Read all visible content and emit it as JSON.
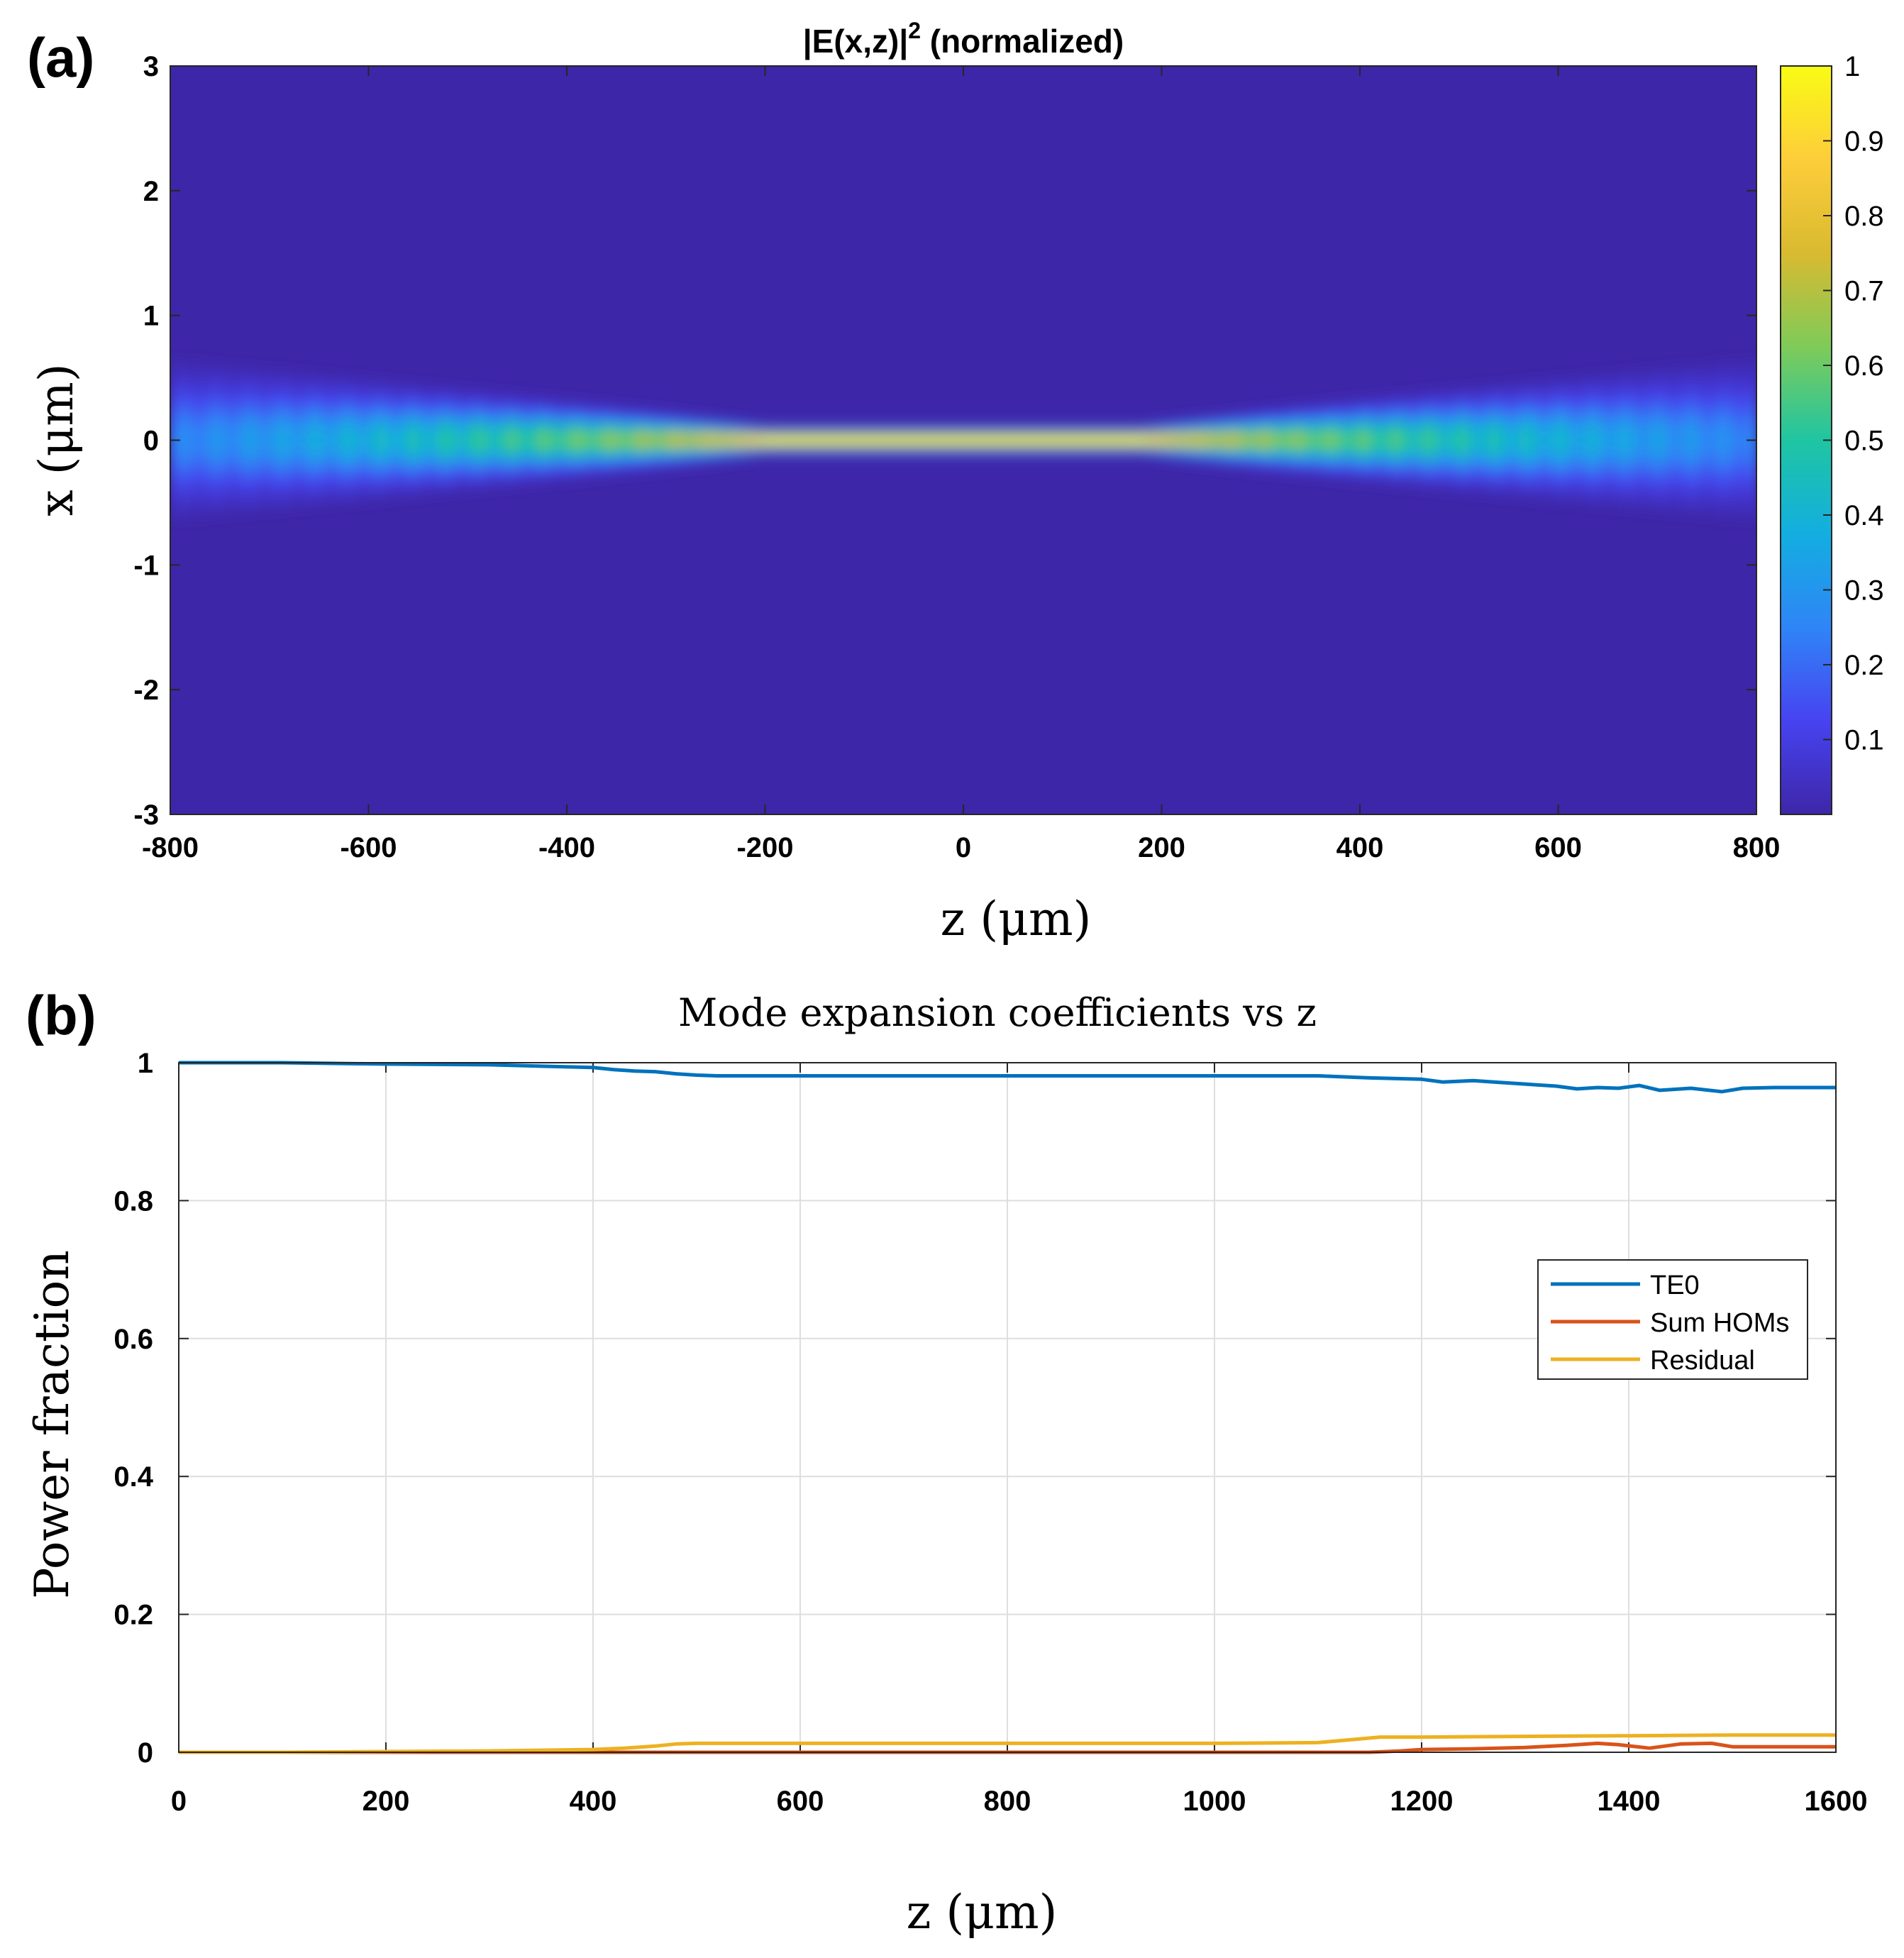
{
  "chart_data": [
    {
      "type": "heatmap",
      "panel_label": "(a)",
      "title": "|E(x,z)|",
      "title_superscript": "2",
      "title_suffix": " (normalized)",
      "xlabel": "z (μm)",
      "ylabel": "x (μm)",
      "xlim": [
        -800,
        800
      ],
      "ylim": [
        -3,
        3
      ],
      "xticks": [
        -800,
        -600,
        -400,
        -200,
        0,
        200,
        400,
        600,
        800
      ],
      "yticks": [
        3,
        2,
        1,
        0,
        -1,
        -2,
        -3
      ],
      "colorbar": {
        "range": [
          0,
          1
        ],
        "ticks": [
          1,
          0.9,
          0.8,
          0.7,
          0.6,
          0.5,
          0.4,
          0.3,
          0.2,
          0.1
        ],
        "colormap": [
          "#3e26a8",
          "#4743f0",
          "#2f85f7",
          "#13aee0",
          "#1fc5a2",
          "#7fcb59",
          "#d9ba30",
          "#fdcd3a",
          "#f9fb14"
        ]
      },
      "field": {
        "plateau_z": [
          -200,
          180
        ],
        "beam_halfwidth_center_um": 0.1,
        "beam_halfwidth_edge_um": 0.55,
        "peak_intensity_edge": 0.25
      }
    },
    {
      "type": "line",
      "panel_label": "(b)",
      "title": "Mode expansion coefficients vs z",
      "xlabel": "z (μm)",
      "ylabel": "Power fraction",
      "xlim": [
        0,
        1600
      ],
      "ylim": [
        0,
        1
      ],
      "xticks": [
        0,
        200,
        400,
        600,
        800,
        1000,
        1200,
        1400,
        1600
      ],
      "yticks": [
        0,
        0.2,
        0.4,
        0.6,
        0.8,
        1
      ],
      "grid": true,
      "legend_position": "center-right",
      "series": [
        {
          "name": "TE0",
          "color": "#0072bd",
          "x": [
            0,
            100,
            200,
            300,
            350,
            400,
            420,
            440,
            460,
            480,
            500,
            520,
            600,
            800,
            1000,
            1100,
            1150,
            1200,
            1220,
            1250,
            1270,
            1300,
            1330,
            1350,
            1370,
            1390,
            1410,
            1430,
            1460,
            1490,
            1510,
            1540,
            1600
          ],
          "y": [
            1.0,
            1.0,
            0.998,
            0.997,
            0.995,
            0.993,
            0.99,
            0.988,
            0.987,
            0.984,
            0.982,
            0.981,
            0.981,
            0.981,
            0.981,
            0.981,
            0.978,
            0.976,
            0.972,
            0.974,
            0.972,
            0.969,
            0.966,
            0.962,
            0.964,
            0.963,
            0.967,
            0.96,
            0.963,
            0.958,
            0.963,
            0.964,
            0.964
          ]
        },
        {
          "name": "Sum HOMs",
          "color": "#d95319",
          "x": [
            0,
            200,
            400,
            1100,
            1150,
            1180,
            1200,
            1250,
            1300,
            1340,
            1370,
            1390,
            1420,
            1450,
            1480,
            1500,
            1600
          ],
          "y": [
            0,
            0,
            0,
            0,
            0.0,
            0.002,
            0.004,
            0.005,
            0.007,
            0.01,
            0.013,
            0.011,
            0.006,
            0.012,
            0.013,
            0.008,
            0.008
          ]
        },
        {
          "name": "Residual",
          "color": "#edb120",
          "x": [
            0,
            100,
            200,
            300,
            400,
            430,
            460,
            480,
            500,
            520,
            600,
            800,
            1000,
            1100,
            1130,
            1160,
            1200,
            1300,
            1400,
            1500,
            1600
          ],
          "y": [
            0,
            0,
            0.001,
            0.002,
            0.004,
            0.006,
            0.009,
            0.012,
            0.013,
            0.013,
            0.013,
            0.013,
            0.013,
            0.014,
            0.018,
            0.022,
            0.022,
            0.023,
            0.024,
            0.025,
            0.025
          ]
        }
      ]
    }
  ]
}
